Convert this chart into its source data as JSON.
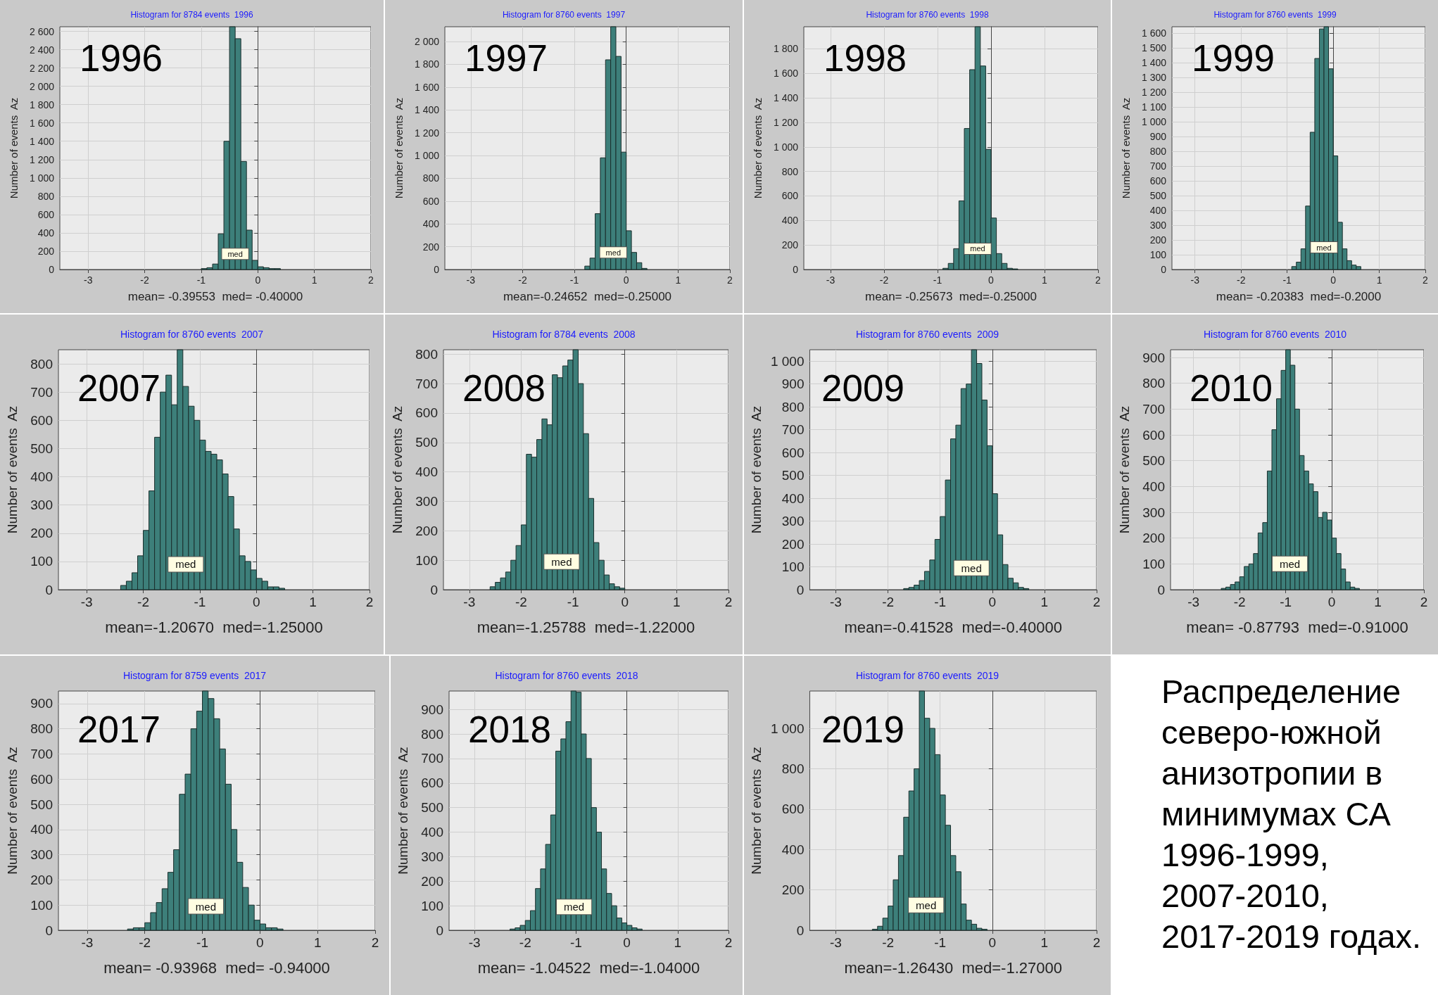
{
  "chart_data": [
    {
      "type": "histogram",
      "title": "Histogram for 8784 events  1996",
      "xlabel": "mean= -0.39553  med= -0.40000",
      "ylabel": "Number of events  Az",
      "color": "#3d7f7a",
      "grid": true,
      "xlim": [
        -3.5,
        2
      ],
      "xticks": [
        -3,
        -2,
        -1,
        0,
        1,
        2
      ],
      "ylim": [
        0,
        2650
      ],
      "yticks": [
        0,
        200,
        400,
        600,
        800,
        {
          "value": 1000,
          "label": "1 000"
        },
        {
          "value": 1200,
          "label": "1 200"
        },
        {
          "value": 1400,
          "label": "1 400"
        },
        {
          "value": 1600,
          "label": "1 600"
        },
        {
          "value": 1800,
          "label": "1 800"
        },
        {
          "value": 2000,
          "label": "2 000"
        },
        {
          "value": 2200,
          "label": "2 200"
        },
        {
          "value": 2400,
          "label": "2 400"
        },
        {
          "value": 2600,
          "label": "2 600"
        }
      ],
      "bins": [
        -1,
        -0.9,
        -0.8,
        -0.7,
        -0.6,
        -0.5,
        -0.4,
        -0.3,
        -0.2,
        -0.1,
        0,
        0.1,
        0.2,
        0.3,
        0.4
      ],
      "values": [
        10,
        20,
        60,
        390,
        1400,
        2650,
        2520,
        1180,
        430,
        100,
        30,
        20,
        10,
        10
      ],
      "annotations": [
        "1996",
        {
          "text": "med",
          "x": -0.4,
          "y": 170
        }
      ]
    },
    {
      "type": "histogram",
      "title": "Histogram for 8760 events  1997",
      "xlabel": "mean=-0.24652  med=-0.25000",
      "ylabel": "Number of events  Az",
      "color": "#3d7f7a",
      "grid": true,
      "xlim": [
        -3.5,
        2
      ],
      "xticks": [
        -3,
        -2,
        -1,
        0,
        1,
        2
      ],
      "ylim": [
        0,
        2130
      ],
      "yticks": [
        0,
        200,
        400,
        600,
        800,
        {
          "value": 1000,
          "label": "1 000"
        },
        {
          "value": 1200,
          "label": "1 200"
        },
        {
          "value": 1400,
          "label": "1 400"
        },
        {
          "value": 1600,
          "label": "1 600"
        },
        {
          "value": 1800,
          "label": "1 800"
        },
        {
          "value": 2000,
          "label": "2 000"
        }
      ],
      "bins": [
        -0.8,
        -0.7,
        -0.6,
        -0.5,
        -0.4,
        -0.3,
        -0.2,
        -0.1,
        0,
        0.1,
        0.2,
        0.3,
        0.4
      ],
      "values": [
        30,
        100,
        490,
        980,
        1840,
        2130,
        1870,
        1030,
        340,
        150,
        60,
        10
      ],
      "annotations": [
        "1997",
        {
          "text": "med",
          "x": -0.25,
          "y": 150
        }
      ]
    },
    {
      "type": "histogram",
      "title": "Histogram for 8760 events  1998",
      "xlabel": "mean= -0.25673  med=-0.25000",
      "ylabel": "Number of events  Az",
      "color": "#3d7f7a",
      "grid": true,
      "xlim": [
        -3.5,
        2
      ],
      "xticks": [
        -3,
        -2,
        -1,
        0,
        1,
        2
      ],
      "ylim": [
        0,
        1980
      ],
      "yticks": [
        0,
        200,
        400,
        600,
        800,
        {
          "value": 1000,
          "label": "1 000"
        },
        {
          "value": 1200,
          "label": "1 200"
        },
        {
          "value": 1400,
          "label": "1 400"
        },
        {
          "value": 1600,
          "label": "1 600"
        },
        {
          "value": 1800,
          "label": "1 800"
        }
      ],
      "bins": [
        -0.9,
        -0.8,
        -0.7,
        -0.6,
        -0.5,
        -0.4,
        -0.3,
        -0.2,
        -0.1,
        0,
        0.1,
        0.2,
        0.3,
        0.4,
        0.5
      ],
      "values": [
        10,
        50,
        170,
        560,
        1150,
        1630,
        1980,
        1660,
        980,
        420,
        130,
        50,
        10,
        5
      ],
      "annotations": [
        "1998",
        {
          "text": "med",
          "x": -0.25,
          "y": 170
        }
      ]
    },
    {
      "type": "histogram",
      "title": "Histogram for 8760 events  1999",
      "xlabel": "mean= -0.20383  med=-0.2000",
      "ylabel": "Number of events  Az",
      "color": "#3d7f7a",
      "grid": true,
      "xlim": [
        -3.5,
        2
      ],
      "xticks": [
        -3,
        -2,
        -1,
        0,
        1,
        2
      ],
      "ylim": [
        0,
        1645
      ],
      "yticks": [
        0,
        100,
        200,
        300,
        400,
        500,
        600,
        700,
        800,
        900,
        {
          "value": 1000,
          "label": "1 000"
        },
        {
          "value": 1100,
          "label": "1 100"
        },
        {
          "value": 1200,
          "label": "1 200"
        },
        {
          "value": 1300,
          "label": "1 300"
        },
        {
          "value": 1400,
          "label": "1 400"
        },
        {
          "value": 1500,
          "label": "1 500"
        },
        {
          "value": 1600,
          "label": "1 600"
        }
      ],
      "bins": [
        -0.9,
        -0.8,
        -0.7,
        -0.6,
        -0.5,
        -0.4,
        -0.3,
        -0.2,
        -0.1,
        0,
        0.1,
        0.2,
        0.3,
        0.4,
        0.5,
        0.6
      ],
      "values": [
        20,
        50,
        140,
        430,
        930,
        1430,
        1630,
        1645,
        1360,
        770,
        320,
        140,
        60,
        30,
        20
      ],
      "annotations": [
        "1999",
        {
          "text": "med",
          "x": -0.2,
          "y": 150
        }
      ]
    },
    {
      "type": "histogram",
      "title": "Histogram for 8760 events  2007",
      "xlabel": "mean=-1.20670  med=-1.25000",
      "ylabel": "Number of events  Az",
      "color": "#3d7f7a",
      "grid": true,
      "xlim": [
        -3.5,
        2
      ],
      "xticks": [
        -3,
        -2,
        -1,
        0,
        1,
        2
      ],
      "ylim": [
        0,
        850
      ],
      "yticks": [
        0,
        100,
        200,
        300,
        400,
        500,
        600,
        700,
        800
      ],
      "bins": [
        -2.4,
        -2.3,
        -2.2,
        -2.1,
        -2,
        -1.9,
        -1.8,
        -1.7,
        -1.6,
        -1.5,
        -1.4,
        -1.3,
        -1.2,
        -1.1,
        -1,
        -0.9,
        -0.8,
        -0.7,
        -0.6,
        -0.5,
        -0.4,
        -0.3,
        -0.2,
        -0.1,
        0,
        0.1,
        0.2,
        0.3,
        0.4,
        0.5
      ],
      "values": [
        15,
        30,
        60,
        120,
        210,
        350,
        540,
        700,
        760,
        655,
        850,
        720,
        650,
        600,
        530,
        490,
        480,
        460,
        410,
        330,
        215,
        120,
        100,
        70,
        40,
        30,
        10,
        10,
        5
      ],
      "annotations": [
        "2007",
        {
          "text": "med",
          "x": -1.25,
          "y": 90
        }
      ]
    },
    {
      "type": "histogram",
      "title": "Histogram for 8784 events  2008",
      "xlabel": "mean=-1.25788  med=-1.22000",
      "ylabel": "Number of events  Az",
      "color": "#3d7f7a",
      "grid": true,
      "xlim": [
        -3.5,
        2
      ],
      "xticks": [
        -3,
        -2,
        -1,
        0,
        1,
        2
      ],
      "ylim": [
        0,
        815
      ],
      "yticks": [
        0,
        100,
        200,
        300,
        400,
        500,
        600,
        700,
        800
      ],
      "bins": [
        -2.6,
        -2.5,
        -2.4,
        -2.3,
        -2.2,
        -2.1,
        -2,
        -1.9,
        -1.8,
        -1.7,
        -1.6,
        -1.5,
        -1.4,
        -1.3,
        -1.2,
        -1.1,
        -1,
        -0.9,
        -0.8,
        -0.7,
        -0.6,
        -0.5,
        -0.4,
        -0.3,
        -0.2,
        -0.1,
        0
      ],
      "values": [
        10,
        25,
        40,
        60,
        100,
        150,
        220,
        460,
        450,
        510,
        580,
        560,
        730,
        720,
        760,
        780,
        815,
        700,
        530,
        310,
        160,
        100,
        50,
        20,
        10,
        5
      ],
      "annotations": [
        "2008",
        {
          "text": "med",
          "x": -1.22,
          "y": 95
        }
      ]
    },
    {
      "type": "histogram",
      "title": "Histogram for 8760 events  2009",
      "xlabel": "mean=-0.41528  med=-0.40000",
      "ylabel": "Number of events  Az",
      "color": "#3d7f7a",
      "grid": true,
      "xlim": [
        -3.5,
        2
      ],
      "xticks": [
        -3,
        -2,
        -1,
        0,
        1,
        2
      ],
      "ylim": [
        0,
        1050
      ],
      "yticks": [
        0,
        100,
        200,
        300,
        400,
        500,
        600,
        700,
        800,
        900,
        {
          "value": 1000,
          "label": "1 000"
        }
      ],
      "bins": [
        -1.7,
        -1.6,
        -1.5,
        -1.4,
        -1.3,
        -1.2,
        -1.1,
        -1,
        -0.9,
        -0.8,
        -0.7,
        -0.6,
        -0.5,
        -0.4,
        -0.3,
        -0.2,
        -0.1,
        0,
        0.1,
        0.2,
        0.3,
        0.4,
        0.5,
        0.6,
        0.7
      ],
      "values": [
        5,
        10,
        20,
        40,
        80,
        130,
        220,
        320,
        480,
        660,
        720,
        880,
        900,
        1050,
        990,
        830,
        630,
        420,
        240,
        110,
        50,
        30,
        10,
        5
      ],
      "annotations": [
        "2009",
        {
          "text": "med",
          "x": -0.4,
          "y": 95
        }
      ]
    },
    {
      "type": "histogram",
      "title": "Histogram for 8760 events  2010",
      "xlabel": "mean= -0.87793  med=-0.91000",
      "ylabel": "Number of events  Az",
      "color": "#3d7f7a",
      "grid": true,
      "xlim": [
        -3.5,
        2
      ],
      "xticks": [
        -3,
        -2,
        -1,
        0,
        1,
        2
      ],
      "ylim": [
        0,
        930
      ],
      "yticks": [
        0,
        100,
        200,
        300,
        400,
        500,
        600,
        700,
        800,
        900
      ],
      "bins": [
        -2.4,
        -2.3,
        -2.2,
        -2.1,
        -2,
        -1.9,
        -1.8,
        -1.7,
        -1.6,
        -1.5,
        -1.4,
        -1.3,
        -1.2,
        -1.1,
        -1,
        -0.9,
        -0.8,
        -0.7,
        -0.6,
        -0.5,
        -0.4,
        -0.3,
        -0.2,
        -0.1,
        0,
        0.1,
        0.2,
        0.3,
        0.4,
        0.5,
        0.6
      ],
      "values": [
        5,
        10,
        20,
        30,
        50,
        90,
        100,
        140,
        220,
        260,
        460,
        620,
        740,
        850,
        930,
        870,
        700,
        520,
        460,
        410,
        380,
        280,
        300,
        270,
        200,
        140,
        80,
        30,
        10,
        5
      ],
      "annotations": [
        "2010",
        {
          "text": "med",
          "x": -0.91,
          "y": 100
        }
      ]
    },
    {
      "type": "histogram",
      "title": "Histogram for 8759 events  2017",
      "xlabel": "mean= -0.93968  med= -0.94000",
      "ylabel": "Number of events  Az",
      "color": "#3d7f7a",
      "grid": true,
      "xlim": [
        -3.5,
        2
      ],
      "xticks": [
        -3,
        -2,
        -1,
        0,
        1,
        2
      ],
      "ylim": [
        0,
        950
      ],
      "yticks": [
        0,
        100,
        200,
        300,
        400,
        500,
        600,
        700,
        800,
        900
      ],
      "bins": [
        -2.3,
        -2.2,
        -2.1,
        -2,
        -1.9,
        -1.8,
        -1.7,
        -1.6,
        -1.5,
        -1.4,
        -1.3,
        -1.2,
        -1.1,
        -1,
        -0.9,
        -0.8,
        -0.7,
        -0.6,
        -0.5,
        -0.4,
        -0.3,
        -0.2,
        -0.1,
        0,
        0.1,
        0.2,
        0.3,
        0.4
      ],
      "values": [
        5,
        10,
        10,
        30,
        70,
        110,
        165,
        230,
        320,
        540,
        620,
        800,
        870,
        950,
        920,
        840,
        720,
        580,
        400,
        270,
        170,
        100,
        40,
        25,
        10,
        10,
        5
      ],
      "annotations": [
        "2017",
        {
          "text": "med",
          "x": -0.94,
          "y": 95
        }
      ]
    },
    {
      "type": "histogram",
      "title": "Histogram for 8760 events  2018",
      "xlabel": "mean= -1.04522  med=-1.04000",
      "ylabel": "Number of events  Az",
      "color": "#3d7f7a",
      "grid": true,
      "xlim": [
        -3.5,
        2
      ],
      "xticks": [
        -3,
        -2,
        -1,
        0,
        1,
        2
      ],
      "ylim": [
        0,
        975
      ],
      "yticks": [
        0,
        100,
        200,
        300,
        400,
        500,
        600,
        700,
        800,
        900
      ],
      "bins": [
        -2.3,
        -2.2,
        -2.1,
        -2,
        -1.9,
        -1.8,
        -1.7,
        -1.6,
        -1.5,
        -1.4,
        -1.3,
        -1.2,
        -1.1,
        -1,
        -0.9,
        -0.8,
        -0.7,
        -0.6,
        -0.5,
        -0.4,
        -0.3,
        -0.2,
        -0.1,
        0,
        0.1,
        0.2,
        0.3
      ],
      "values": [
        5,
        10,
        20,
        40,
        80,
        170,
        250,
        350,
        470,
        730,
        780,
        850,
        975,
        970,
        800,
        700,
        500,
        400,
        250,
        150,
        100,
        50,
        30,
        20,
        10,
        5
      ],
      "annotations": [
        "2018",
        {
          "text": "med",
          "x": -1.04,
          "y": 95
        }
      ]
    },
    {
      "type": "histogram",
      "title": "Histogram for 8760 events  2019",
      "xlabel": "mean=-1.26430  med=-1.27000",
      "ylabel": "Number of events  Az",
      "color": "#3d7f7a",
      "grid": true,
      "xlim": [
        -3.5,
        2
      ],
      "xticks": [
        -3,
        -2,
        -1,
        0,
        1,
        2
      ],
      "ylim": [
        0,
        1185
      ],
      "yticks": [
        0,
        200,
        400,
        600,
        800,
        {
          "value": 1000,
          "label": "1 000"
        }
      ],
      "bins": [
        -2.3,
        -2.2,
        -2.1,
        -2,
        -1.9,
        -1.8,
        -1.7,
        -1.6,
        -1.5,
        -1.4,
        -1.3,
        -1.2,
        -1.1,
        -1,
        -0.9,
        -0.8,
        -0.7,
        -0.6,
        -0.5,
        -0.4,
        -0.3,
        -0.2,
        -0.1
      ],
      "values": [
        5,
        20,
        60,
        120,
        250,
        370,
        560,
        690,
        800,
        1185,
        1050,
        1000,
        870,
        670,
        520,
        370,
        290,
        130,
        50,
        30,
        10,
        5
      ],
      "annotations": [
        "2019",
        {
          "text": "med",
          "x": -1.27,
          "y": 125
        }
      ]
    },
    {
      "type": "other",
      "title": "Распределение северо-южной анизотропии в минимумах СА 1996-1999, 2007-2010, 2017-2019 годах."
    }
  ]
}
